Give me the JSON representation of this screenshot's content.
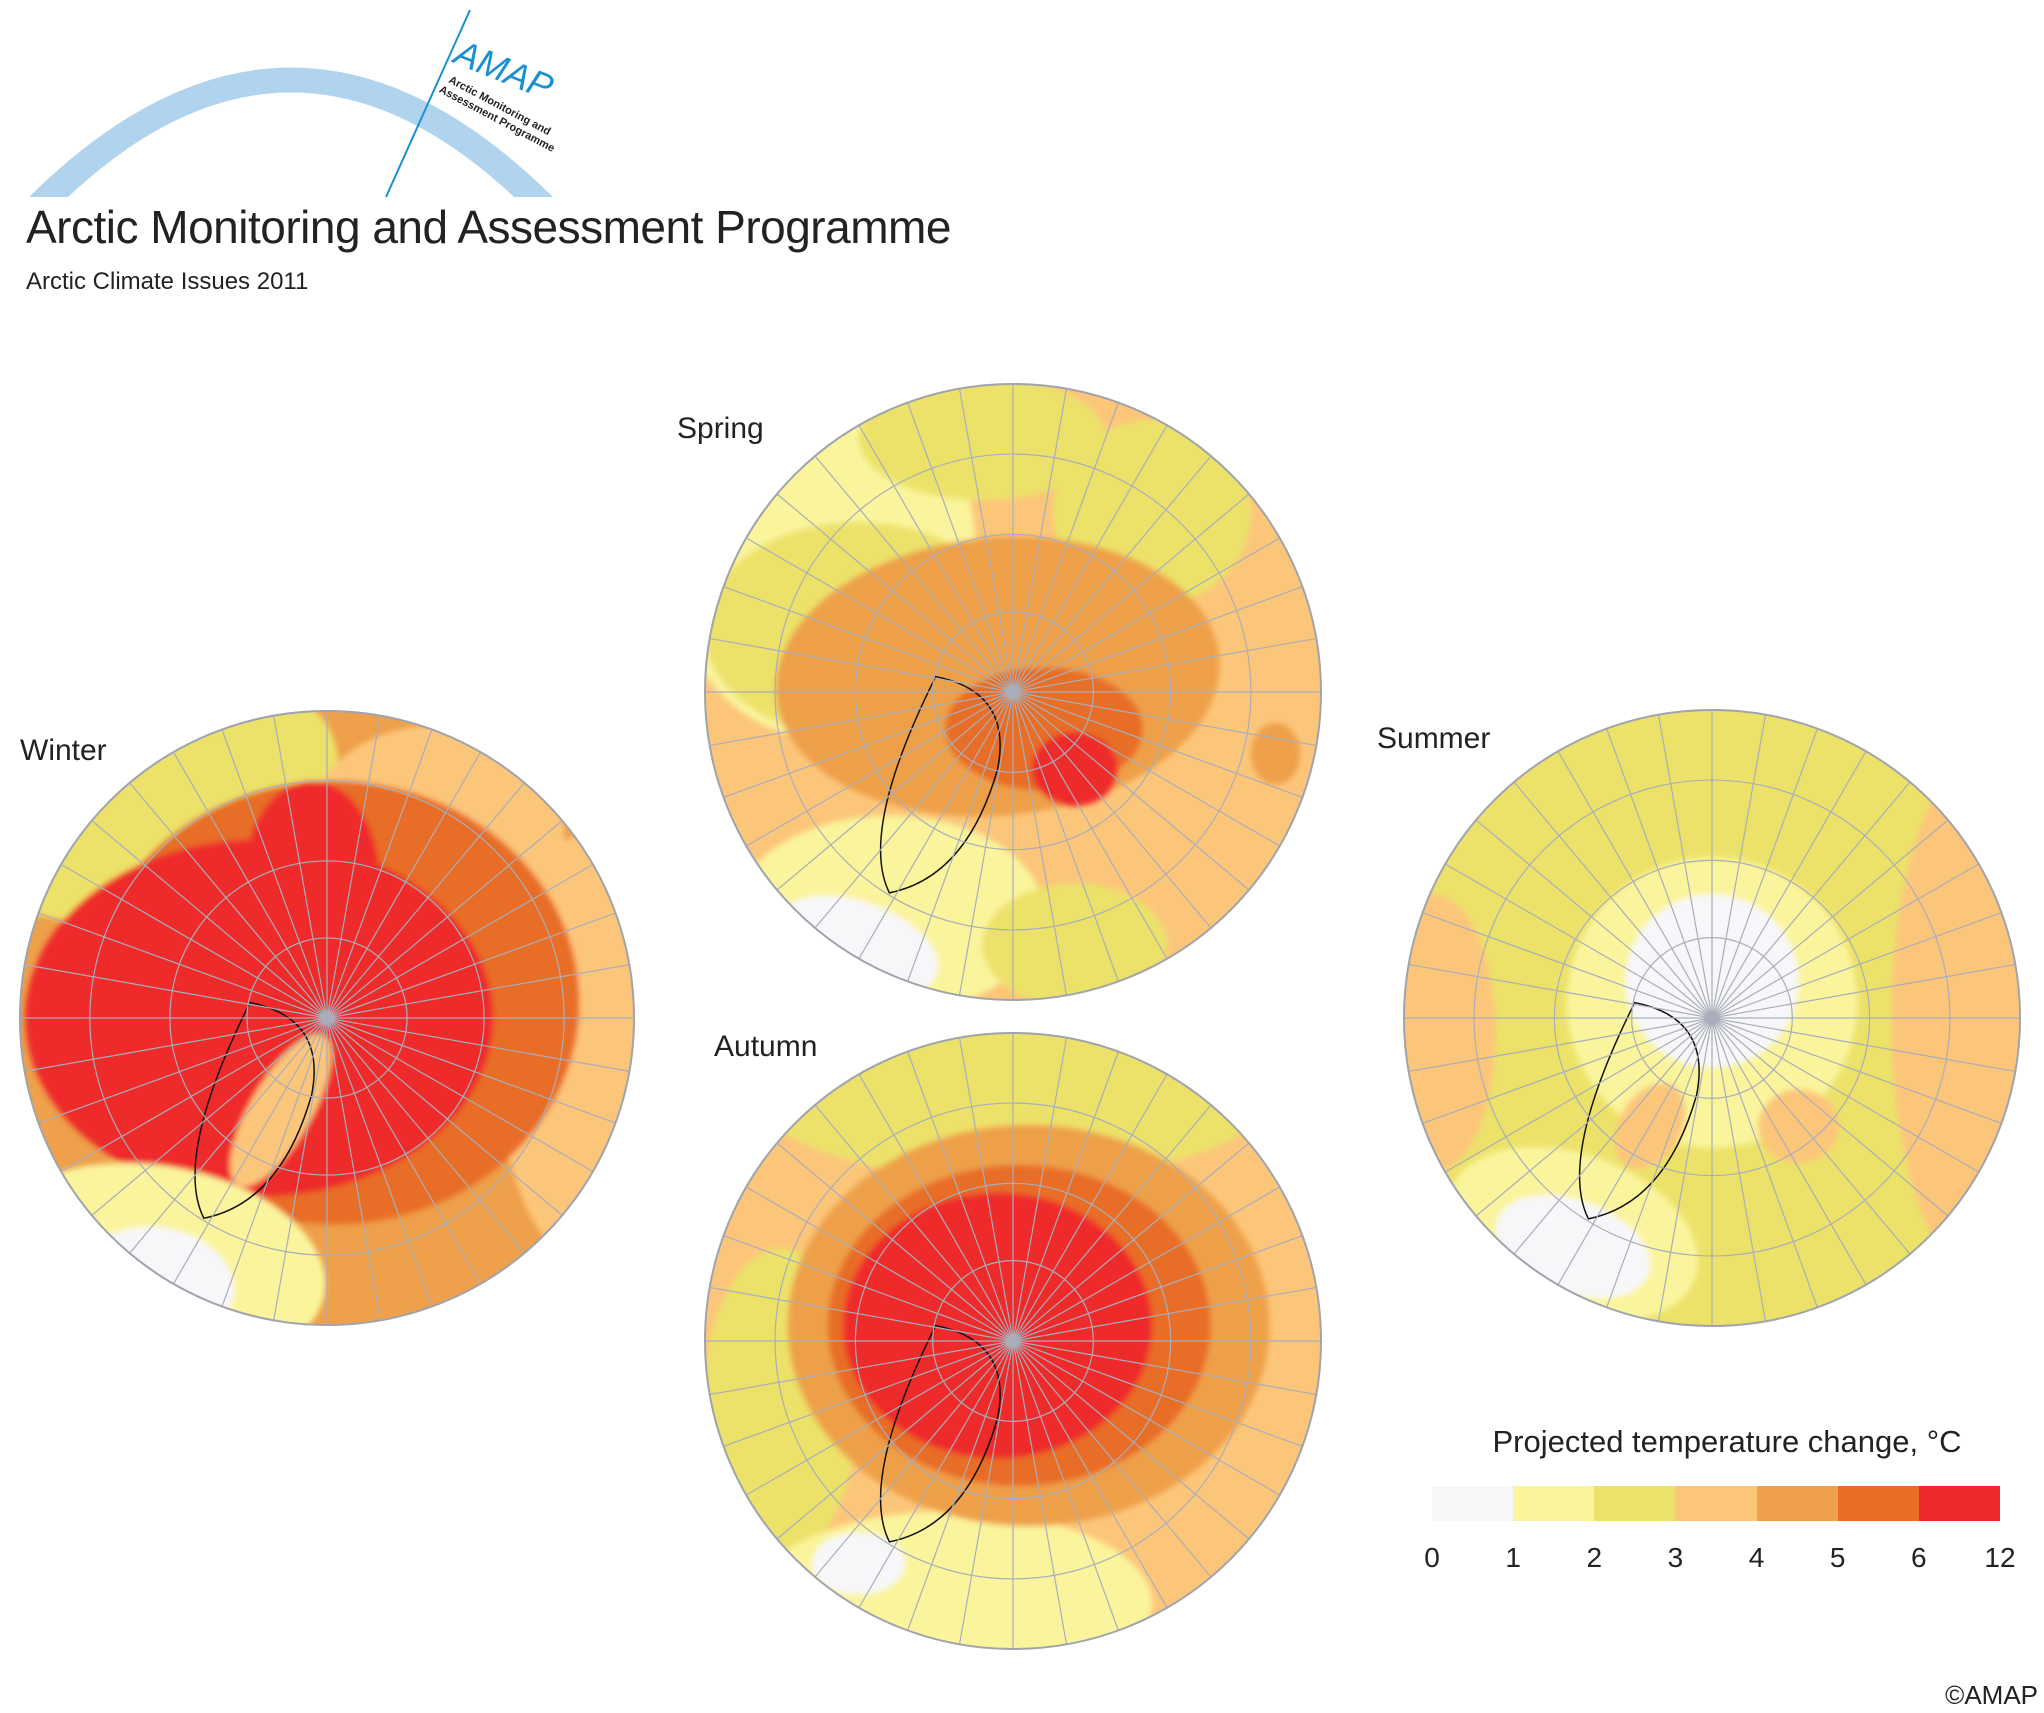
{
  "header": {
    "logo_text": "AMAP",
    "logo_subtext": "Arctic Monitoring and Assessment Programme",
    "title": "Arctic Monitoring and Assessment Programme",
    "subtitle": "Arctic Climate Issues 2011"
  },
  "maps": [
    {
      "id": "winter",
      "label": "Winter"
    },
    {
      "id": "spring",
      "label": "Spring"
    },
    {
      "id": "autumn",
      "label": "Autumn"
    },
    {
      "id": "summer",
      "label": "Summer"
    }
  ],
  "legend": {
    "title": "Projected temperature change, °C",
    "ticks": [
      "0",
      "1",
      "2",
      "3",
      "4",
      "5",
      "6",
      "12"
    ],
    "colors": [
      "#F7F7F9",
      "#FAF49C",
      "#ECE26A",
      "#FCC67A",
      "#EEA04A",
      "#E86D25",
      "#EE2A2C"
    ]
  },
  "colors": {
    "logo_arc": "#B1D4EE",
    "logo_blue": "#1A8FD2",
    "graticule": "#A9AEBA"
  },
  "copyright": "©AMAP"
}
